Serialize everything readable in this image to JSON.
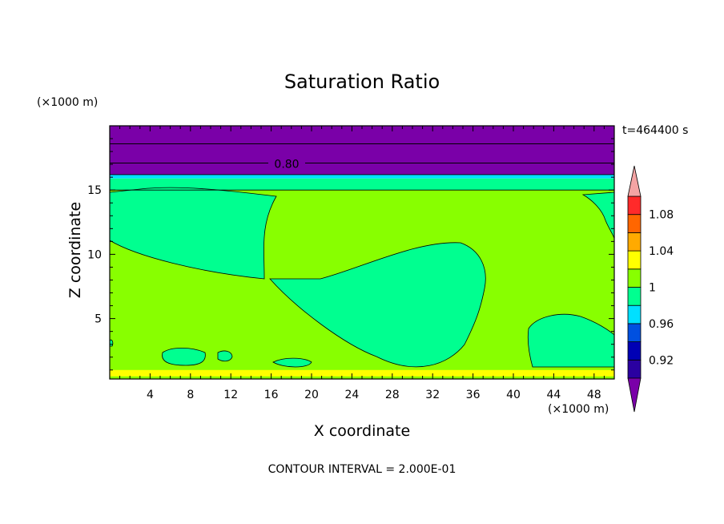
{
  "chart_data": {
    "type": "heatmap",
    "title": "Saturation Ratio",
    "xlabel": "X coordinate",
    "ylabel": "Z coordinate",
    "x_units": "(×1000 m)",
    "y_units": "(×1000 m)",
    "time_label": "t=464400 s",
    "footer": "CONTOUR INTERVAL = 2.000E-01",
    "xlim": [
      0,
      50
    ],
    "ylim": [
      0.3,
      20
    ],
    "xticks": [
      4,
      8,
      12,
      16,
      20,
      24,
      28,
      32,
      36,
      40,
      44,
      48
    ],
    "yticks": [
      5,
      10,
      15
    ],
    "contour_label": "0.80",
    "colorbar": {
      "colors": [
        "#7a00a8",
        "#2a00a0",
        "#0000b4",
        "#0050e0",
        "#00e0ff",
        "#00ff90",
        "#88ff00",
        "#ffff00",
        "#ffaa00",
        "#ff6600",
        "#ff2a2a",
        "#f4a4a4"
      ],
      "labels": [
        "0.92",
        "0.96",
        "1",
        "1.04",
        "1.08"
      ]
    },
    "regions": [
      {
        "color": "#7a00a8",
        "zmin": 16.2,
        "zmax": 20,
        "note_value": "0.80"
      },
      {
        "color": "#00e0ff",
        "zmin": 15.9,
        "zmax": 16.2
      },
      {
        "color": "#00ff90",
        "zmin": 15.0,
        "zmax": 15.9
      },
      {
        "color": "#88ff00",
        "zmin": 0.3,
        "zmax": 15.0
      },
      {
        "color": "#ffff00",
        "zmin": 0.5,
        "zmax": 1.0
      }
    ]
  }
}
